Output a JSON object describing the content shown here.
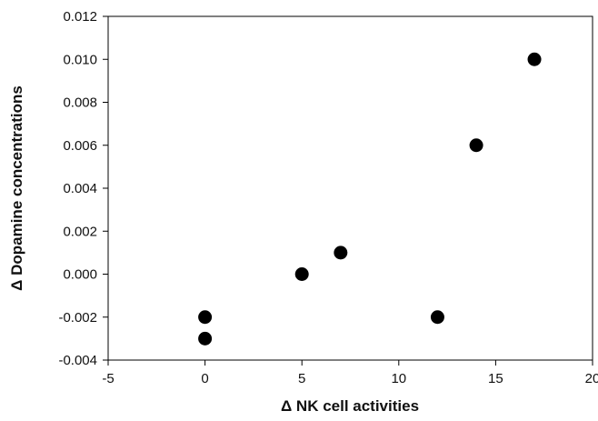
{
  "chart_data": {
    "type": "scatter",
    "title": "",
    "xlabel": "Δ NK cell activities",
    "ylabel": "Δ Dopamine concentrations",
    "xlim": [
      -5,
      20
    ],
    "ylim": [
      -0.004,
      0.012
    ],
    "x_ticks": [
      "-5",
      "0",
      "5",
      "10",
      "15",
      "20"
    ],
    "y_ticks": [
      "-0.004",
      "-0.002",
      "0.000",
      "0.002",
      "0.004",
      "0.006",
      "0.008",
      "0.010",
      "0.012"
    ],
    "grid": false,
    "legend": "none",
    "marker_color": "#000000",
    "points": [
      {
        "x": 0,
        "y": -0.002
      },
      {
        "x": 0,
        "y": -0.003
      },
      {
        "x": 5,
        "y": 0.0
      },
      {
        "x": 7,
        "y": 0.001
      },
      {
        "x": 12,
        "y": -0.002
      },
      {
        "x": 14,
        "y": 0.006
      },
      {
        "x": 17,
        "y": 0.01
      }
    ]
  }
}
